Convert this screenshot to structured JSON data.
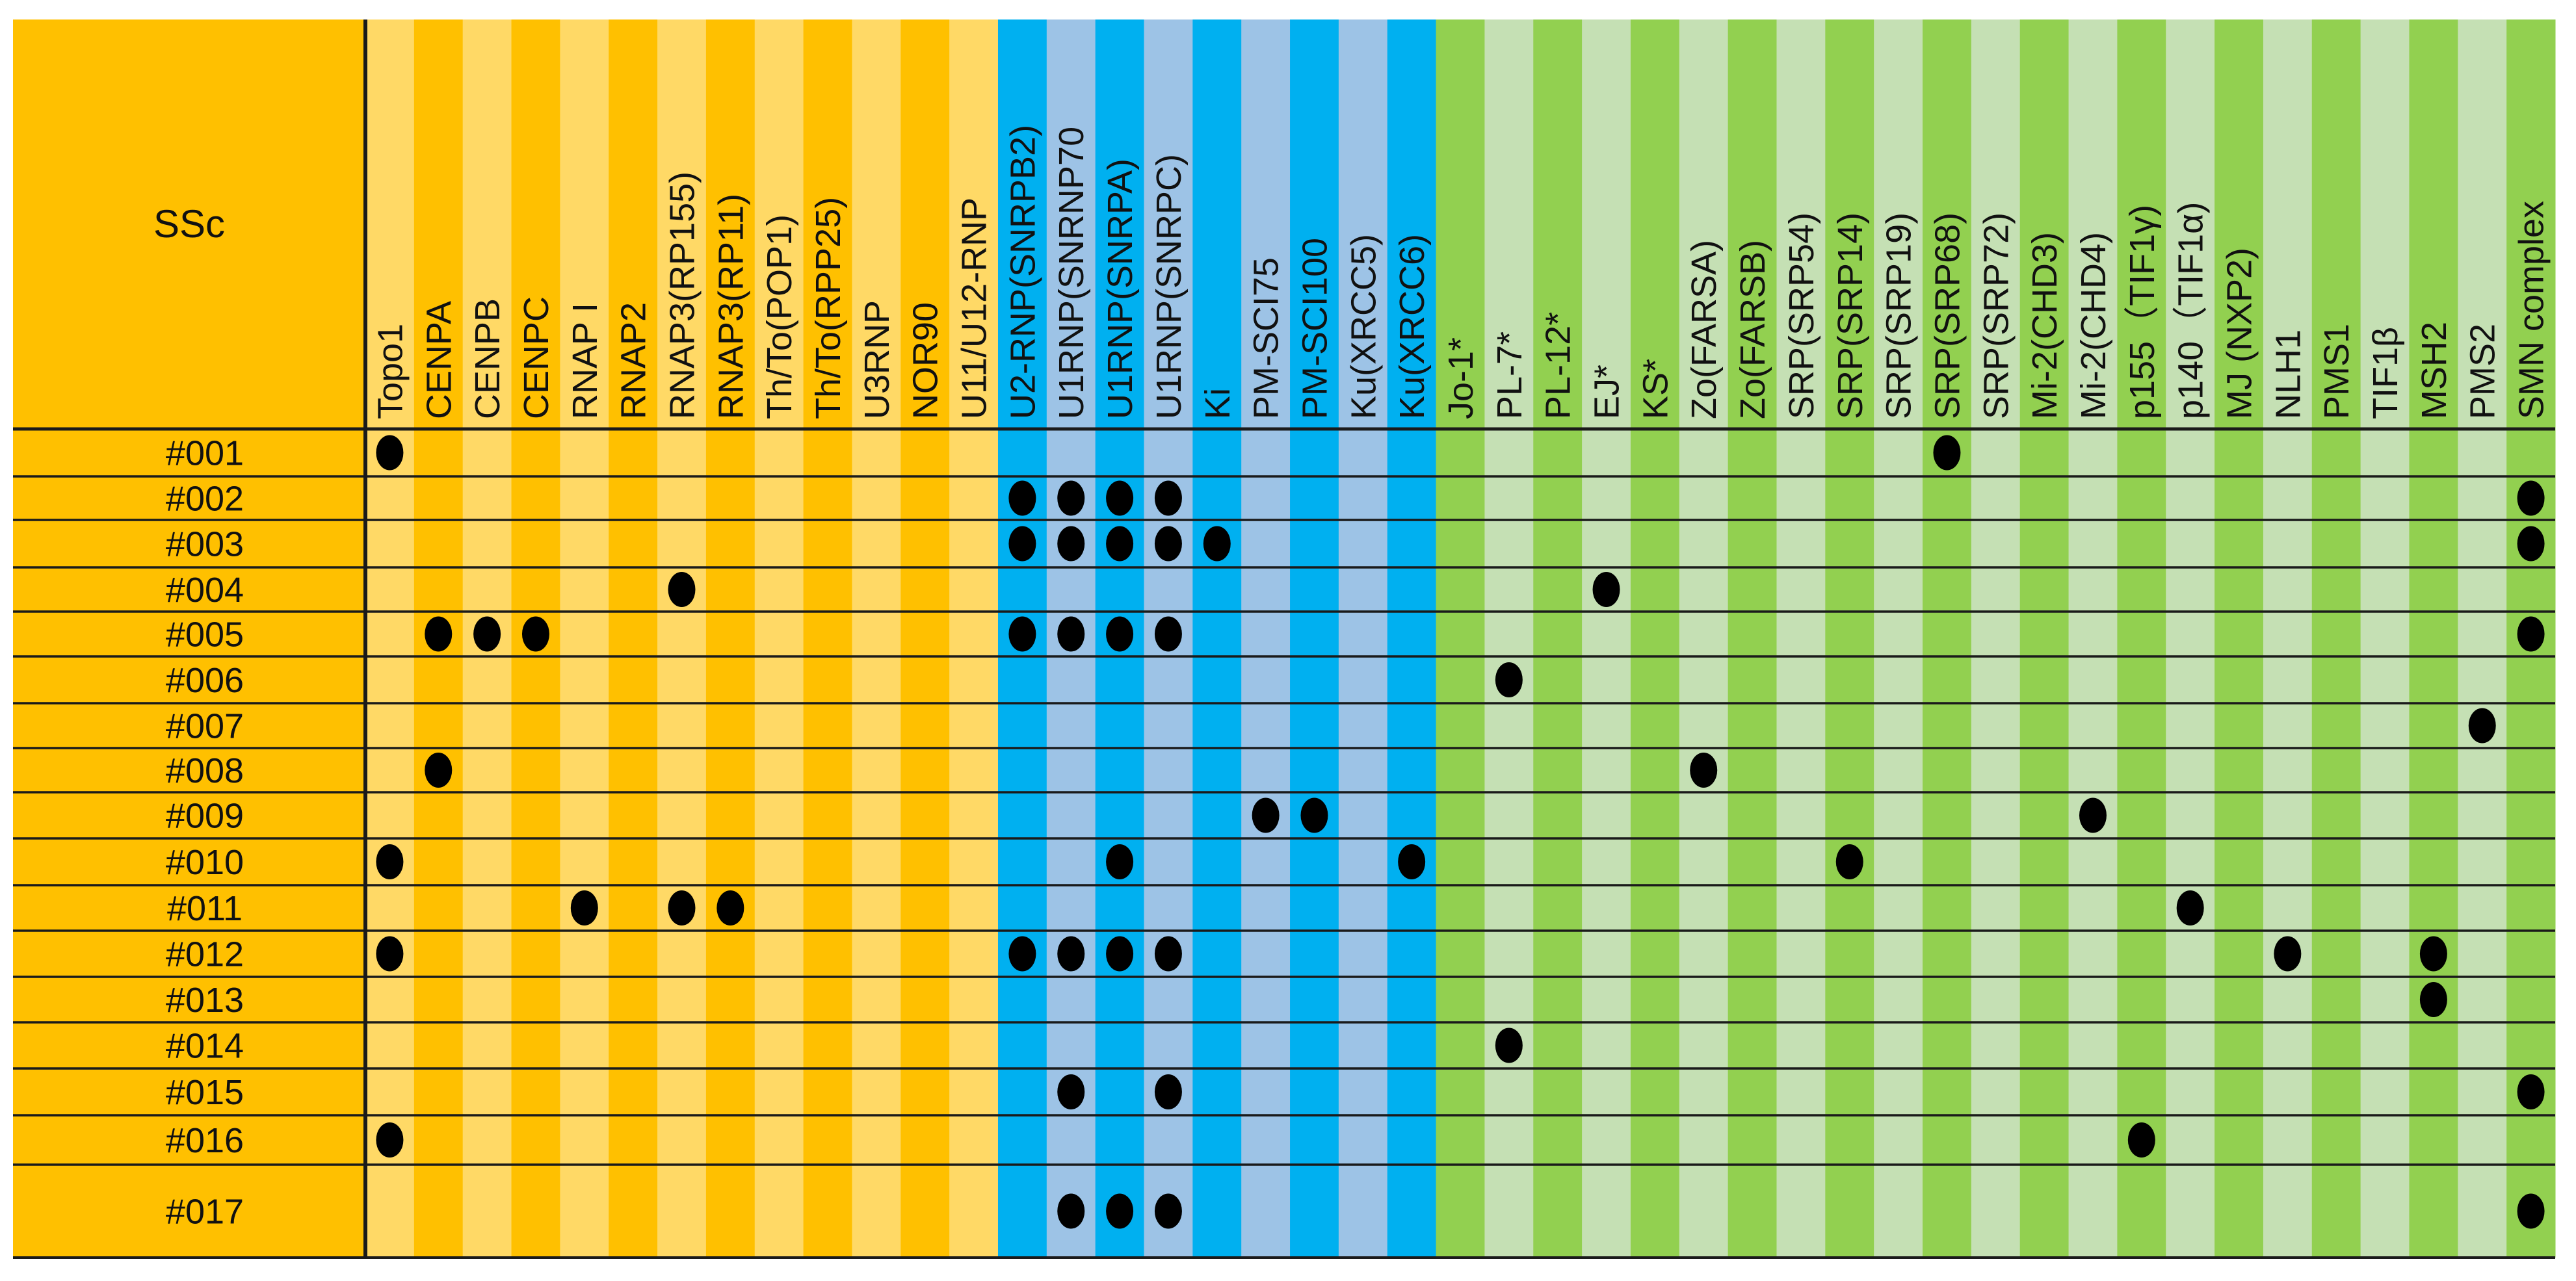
{
  "chart_data": {
    "type": "heatmap",
    "title": "",
    "corner_label": "SSc",
    "columns": [
      {
        "label": "Topo1",
        "group": "orange"
      },
      {
        "label": "CENPA",
        "group": "orange"
      },
      {
        "label": "CENPB",
        "group": "orange"
      },
      {
        "label": "CENPC",
        "group": "orange"
      },
      {
        "label": "RNAP I",
        "group": "orange"
      },
      {
        "label": "RNAP2",
        "group": "orange"
      },
      {
        "label": "RNAP3(RP155)",
        "group": "orange"
      },
      {
        "label": "RNAP3(RP11)",
        "group": "orange"
      },
      {
        "label": "Th/To(POP1)",
        "group": "orange"
      },
      {
        "label": "Th/To(RPP25)",
        "group": "orange"
      },
      {
        "label": "U3RNP",
        "group": "orange"
      },
      {
        "label": "NOR90",
        "group": "orange"
      },
      {
        "label": "U11/U12-RNP",
        "group": "orange"
      },
      {
        "label": "U2-RNP(SNRPB2)",
        "group": "blue"
      },
      {
        "label": "U1RNP(SNRNP70",
        "group": "blue"
      },
      {
        "label": "U1RNP(SNRPA)",
        "group": "blue"
      },
      {
        "label": "U1RNP(SNRPC)",
        "group": "blue"
      },
      {
        "label": "Ki",
        "group": "blue"
      },
      {
        "label": "PM-SCI75",
        "group": "blue"
      },
      {
        "label": "PM-SCI100",
        "group": "blue"
      },
      {
        "label": "Ku(XRCC5)",
        "group": "blue"
      },
      {
        "label": "Ku(XRCC6)",
        "group": "blue"
      },
      {
        "label": "Jo-1*",
        "group": "green"
      },
      {
        "label": "PL-7*",
        "group": "green"
      },
      {
        "label": "PL-12*",
        "group": "green"
      },
      {
        "label": "EJ*",
        "group": "green"
      },
      {
        "label": "KS*",
        "group": "green"
      },
      {
        "label": "Zo(FARSA)",
        "group": "green"
      },
      {
        "label": "Zo(FARSB)",
        "group": "green"
      },
      {
        "label": "SRP(SRP54)",
        "group": "green"
      },
      {
        "label": "SRP(SRP14)",
        "group": "green"
      },
      {
        "label": "SRP(SRP19)",
        "group": "green"
      },
      {
        "label": "SRP(SRP68)",
        "group": "green"
      },
      {
        "label": "SRP(SRP72)",
        "group": "green"
      },
      {
        "label": "Mi-2(CHD3)",
        "group": "green"
      },
      {
        "label": "Mi-2(CHD4)",
        "group": "green"
      },
      {
        "label": "p155（TIF1γ)",
        "group": "green"
      },
      {
        "label": "p140（TIF1α)",
        "group": "green"
      },
      {
        "label": "MJ (NXP2)",
        "group": "green"
      },
      {
        "label": "NLH1",
        "group": "green"
      },
      {
        "label": "PMS1",
        "group": "green"
      },
      {
        "label": "TIF1β",
        "group": "green"
      },
      {
        "label": "MSH2",
        "group": "green"
      },
      {
        "label": "PMS2",
        "group": "green"
      },
      {
        "label": "SMN complex",
        "group": "green"
      }
    ],
    "rows": [
      "#001",
      "#002",
      "#003",
      "#004",
      "#005",
      "#006",
      "#007",
      "#008",
      "#009",
      "#010",
      "#011",
      "#012",
      "#013",
      "#014",
      "#015",
      "#016",
      "#017"
    ],
    "positives": [
      {
        "row": "#001",
        "columns": [
          "Topo1",
          "SRP(SRP68)"
        ]
      },
      {
        "row": "#002",
        "columns": [
          "U2-RNP(SNRPB2)",
          "U1RNP(SNRNP70",
          "U1RNP(SNRPA)",
          "U1RNP(SNRPC)",
          "SMN complex"
        ]
      },
      {
        "row": "#003",
        "columns": [
          "U2-RNP(SNRPB2)",
          "U1RNP(SNRNP70",
          "U1RNP(SNRPA)",
          "U1RNP(SNRPC)",
          "Ki",
          "SMN complex"
        ]
      },
      {
        "row": "#004",
        "columns": [
          "RNAP3(RP155)",
          "EJ*"
        ]
      },
      {
        "row": "#005",
        "columns": [
          "CENPA",
          "CENPB",
          "CENPC",
          "U2-RNP(SNRPB2)",
          "U1RNP(SNRNP70",
          "U1RNP(SNRPA)",
          "U1RNP(SNRPC)",
          "SMN complex"
        ]
      },
      {
        "row": "#006",
        "columns": [
          "PL-7*"
        ]
      },
      {
        "row": "#007",
        "columns": [
          "PMS2"
        ]
      },
      {
        "row": "#008",
        "columns": [
          "CENPA",
          "Zo(FARSA)"
        ]
      },
      {
        "row": "#009",
        "columns": [
          "PM-SCI75",
          "PM-SCI100",
          "Mi-2(CHD4)"
        ]
      },
      {
        "row": "#010",
        "columns": [
          "Topo1",
          "U1RNP(SNRPA)",
          "Ku(XRCC6)",
          "SRP(SRP14)"
        ]
      },
      {
        "row": "#011",
        "columns": [
          "RNAP I",
          "RNAP3(RP155)",
          "RNAP3(RP11)",
          "p140（TIF1α)"
        ]
      },
      {
        "row": "#012",
        "columns": [
          "Topo1",
          "U2-RNP(SNRPB2)",
          "U1RNP(SNRNP70",
          "U1RNP(SNRPA)",
          "U1RNP(SNRPC)",
          "NLH1",
          "MSH2"
        ]
      },
      {
        "row": "#013",
        "columns": [
          "MSH2"
        ]
      },
      {
        "row": "#014",
        "columns": [
          "PL-7*"
        ]
      },
      {
        "row": "#015",
        "columns": [
          "U1RNP(SNRNP70",
          "U1RNP(SNRPC)",
          "SMN complex"
        ]
      },
      {
        "row": "#016",
        "columns": [
          "Topo1",
          "p155（TIF1γ)"
        ]
      },
      {
        "row": "#017",
        "columns": [
          "U1RNP(SNRNP70",
          "U1RNP(SNRPA)",
          "U1RNP(SNRPC)",
          "SMN complex"
        ]
      }
    ],
    "marker": "filled black ellipse = positive",
    "colors": {
      "orange_dark": "#FFC000",
      "orange_light": "#FFD966",
      "blue_dark": "#00B0F0",
      "blue_light": "#9DC3E6",
      "green_dark": "#92D050",
      "green_light": "#C5E0B4",
      "header_corner": "#FFC000",
      "row_label_bg": "#FFC000",
      "grid_line": "#1a1a1a",
      "dot": "#000000"
    }
  }
}
